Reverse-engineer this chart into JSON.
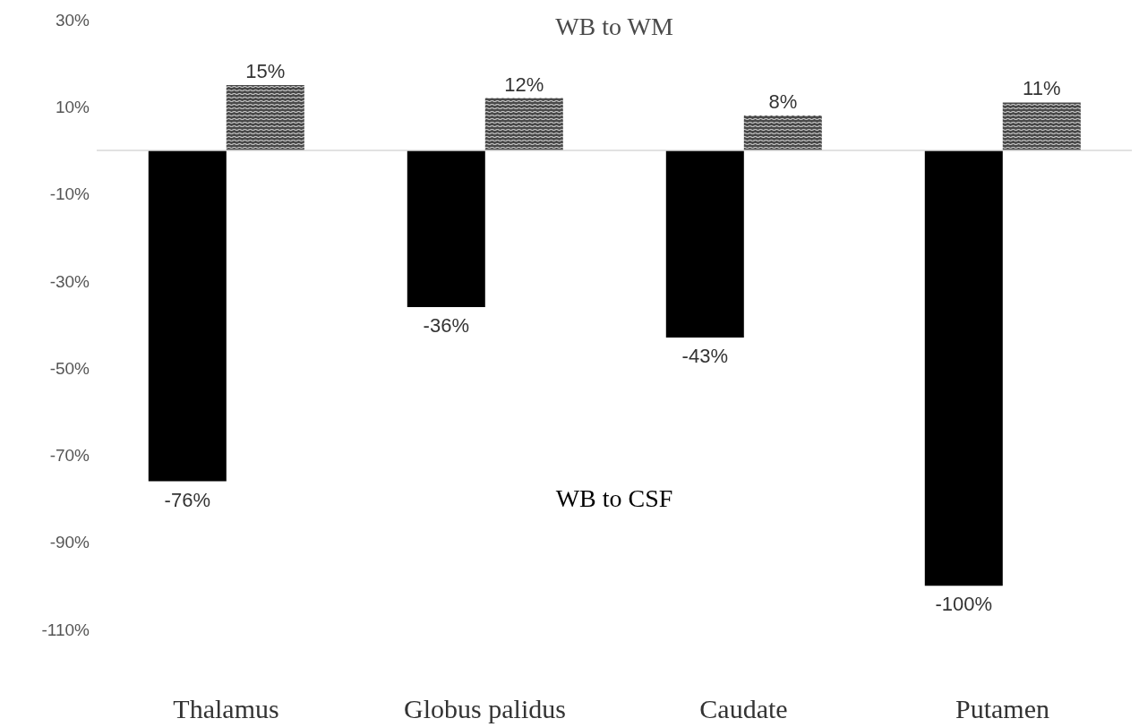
{
  "chart_data": {
    "type": "bar",
    "categories": [
      "Thalamus",
      "Globus palidus",
      "Caudate",
      "Putamen"
    ],
    "series": [
      {
        "name": "WB to CSF",
        "color": "#000000",
        "values": [
          -76,
          -36,
          -43,
          -100
        ],
        "value_labels": [
          "-76%",
          "-36%",
          "-43%",
          "-100%"
        ]
      },
      {
        "name": "WB to WM",
        "color": "#4a4a4a",
        "values": [
          15,
          12,
          8,
          11
        ],
        "value_labels": [
          "15%",
          "12%",
          "8%",
          "11%"
        ]
      }
    ],
    "ylim": [
      -110,
      30
    ],
    "yticks": [
      {
        "value": -110,
        "label": "-110%"
      },
      {
        "value": -90,
        "label": "-90%"
      },
      {
        "value": -70,
        "label": "-70%"
      },
      {
        "value": -50,
        "label": "-50%"
      },
      {
        "value": -30,
        "label": "-30%"
      },
      {
        "value": -10,
        "label": "-10%"
      },
      {
        "value": 10,
        "label": "10%"
      },
      {
        "value": 30,
        "label": "30%"
      }
    ]
  }
}
